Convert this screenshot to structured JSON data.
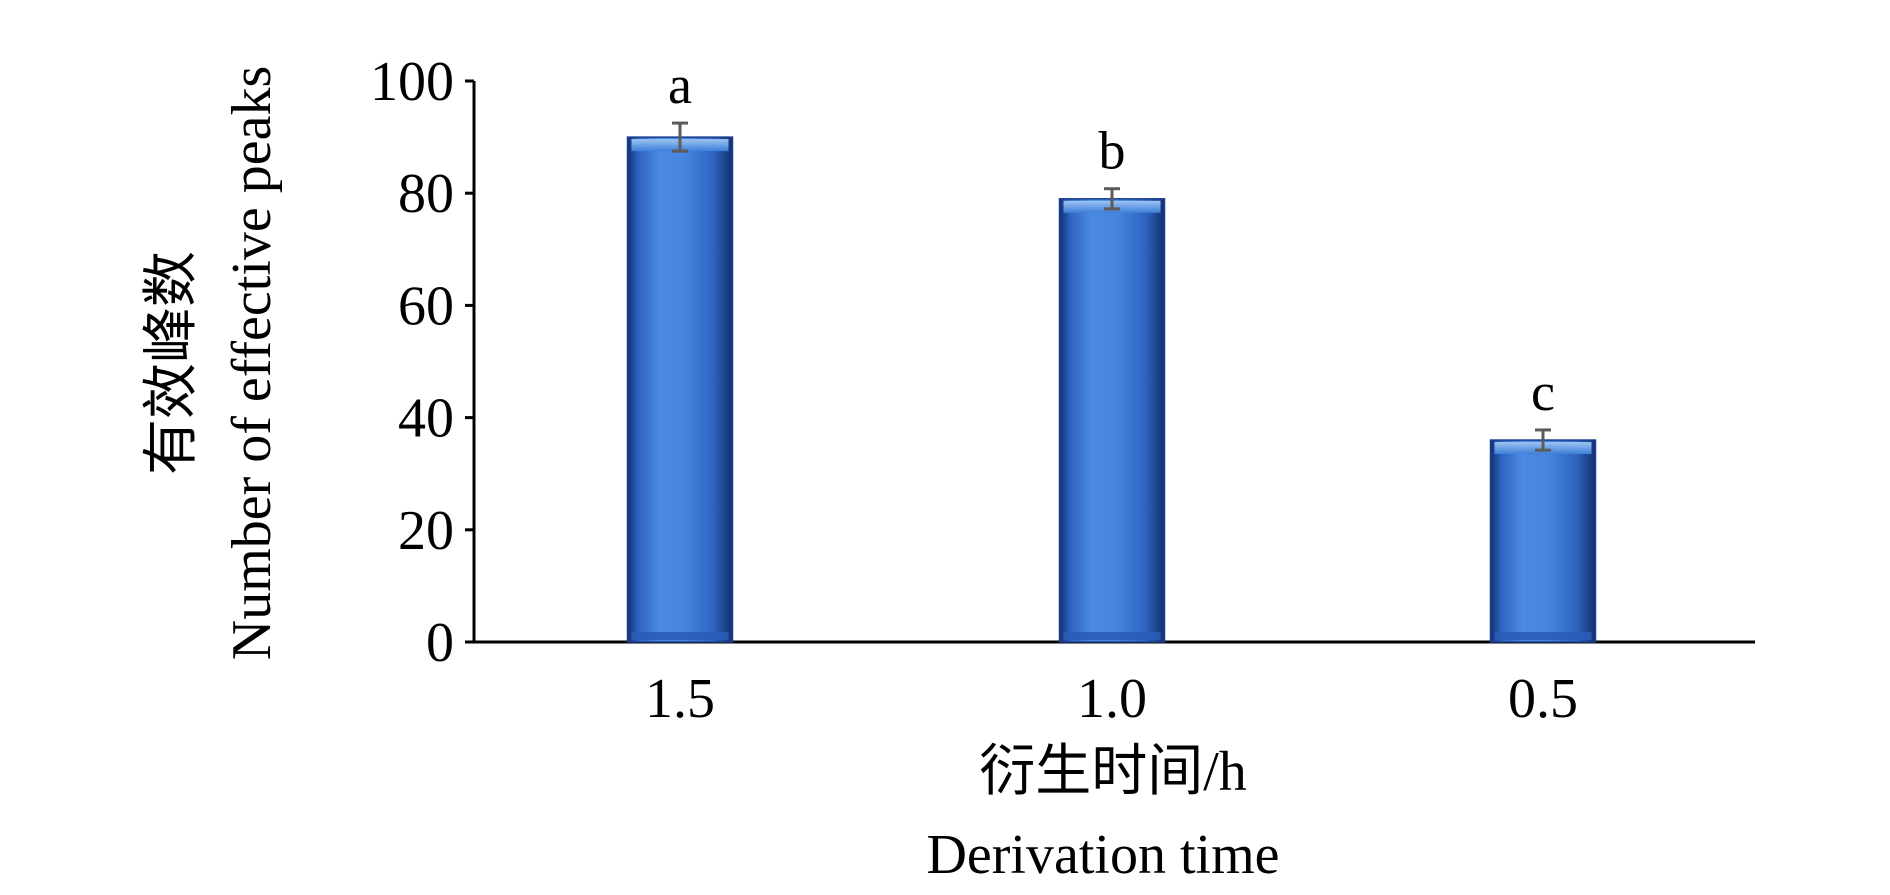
{
  "chart_data": {
    "type": "bar",
    "categories": [
      "1.5",
      "1.0",
      "0.5"
    ],
    "series": [
      {
        "values": [
          90,
          79,
          36
        ],
        "error": [
          2.5,
          1.8,
          1.8
        ],
        "significance": [
          "a",
          "b",
          "c"
        ]
      }
    ],
    "xlabel": "衍生时间/h",
    "xlabel_en": "Derivation time",
    "ylabel": "有效峰数",
    "ylabel_en": "Number of effective peaks",
    "ylim": [
      0,
      100
    ],
    "yticks": [
      "0",
      "20",
      "40",
      "60",
      "80",
      "100"
    ],
    "grid": false,
    "legend": "none",
    "bar_color": "#3d7fd9",
    "bar_edge_color": "#1a3f8f"
  }
}
